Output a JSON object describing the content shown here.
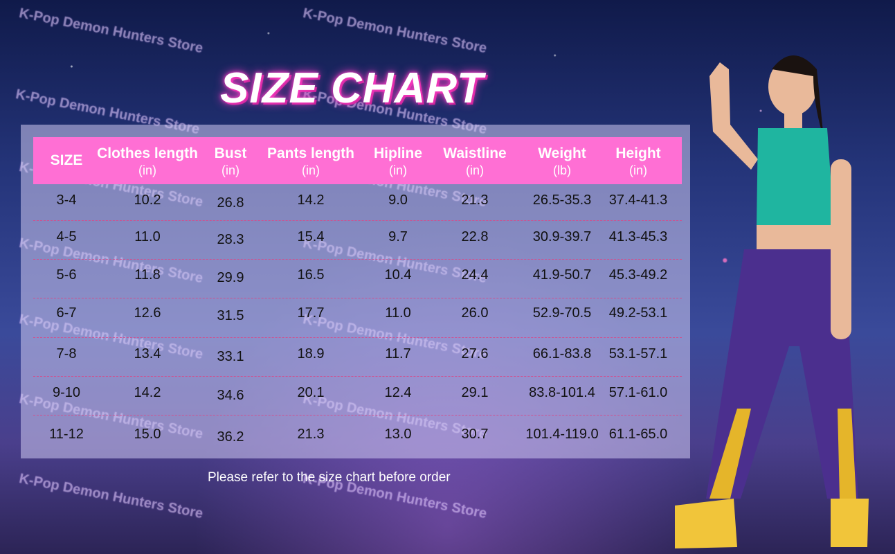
{
  "title": "SIZE CHART",
  "watermark": "K-Pop Demon Hunters Store",
  "table": {
    "headers": [
      {
        "label": "SIZE",
        "unit": ""
      },
      {
        "label": "Clothes length",
        "unit": "(in)"
      },
      {
        "label": "Bust",
        "unit": "(in)"
      },
      {
        "label": "Pants length",
        "unit": "(in)"
      },
      {
        "label": "Hipline",
        "unit": "(in)"
      },
      {
        "label": "Waistline",
        "unit": "(in)"
      },
      {
        "label": "Weight",
        "unit": "(lb)"
      },
      {
        "label": "Height",
        "unit": "(in)"
      }
    ],
    "rows": [
      [
        "3-4",
        "10.2",
        "26.8",
        "14.2",
        "9.0",
        "21.3",
        "26.5-35.3",
        "37.4-41.3"
      ],
      [
        "4-5",
        "11.0",
        "28.3",
        "15.4",
        "9.7",
        "22.8",
        "30.9-39.7",
        "41.3-45.3"
      ],
      [
        "5-6",
        "11.8",
        "29.9",
        "16.5",
        "10.4",
        "24.4",
        "41.9-50.7",
        "45.3-49.2"
      ],
      [
        "6-7",
        "12.6",
        "31.5",
        "17.7",
        "11.0",
        "26.0",
        "52.9-70.5",
        "49.2-53.1"
      ],
      [
        "7-8",
        "13.4",
        "33.1",
        "18.9",
        "11.7",
        "27.6",
        "66.1-83.8",
        "53.1-57.1"
      ],
      [
        "9-10",
        "14.2",
        "34.6",
        "20.1",
        "12.4",
        "29.1",
        "83.8-101.4",
        "57.1-61.0"
      ],
      [
        "11-12",
        "15.0",
        "36.2",
        "21.3",
        "13.0",
        "30.7",
        "101.4-119.0",
        "61.1-65.0"
      ]
    ]
  },
  "note": "Please refer to the size chart before order",
  "colors": {
    "header": "#ff6fd4",
    "title_glow": "#ff3fc8",
    "separator": "#d0508f"
  }
}
